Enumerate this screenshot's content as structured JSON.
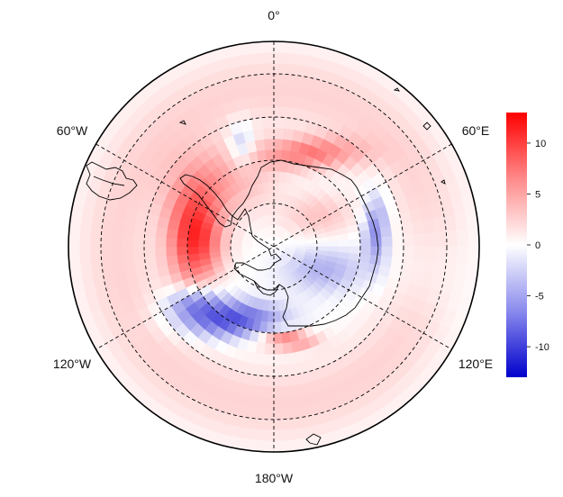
{
  "map": {
    "projection": "south-polar-stereographic",
    "longitude_labels": {
      "top": "0°",
      "upper_left": "60°W",
      "upper_right": "60°E",
      "lower_left": "120°W",
      "lower_right": "120°E",
      "bottom": "180°W"
    },
    "graticule": "dashed",
    "coastlines": "Antarctica and South America tip outlined in black",
    "field": "diverging anomaly field shaded on polar grid"
  },
  "colorbar": {
    "ticks": [
      "10",
      "5",
      "0",
      "-5",
      "-10"
    ],
    "range": [
      -13,
      13
    ],
    "colors": {
      "max": "#ff0000",
      "mid": "#ffffff",
      "min": "#0000cc"
    }
  }
}
